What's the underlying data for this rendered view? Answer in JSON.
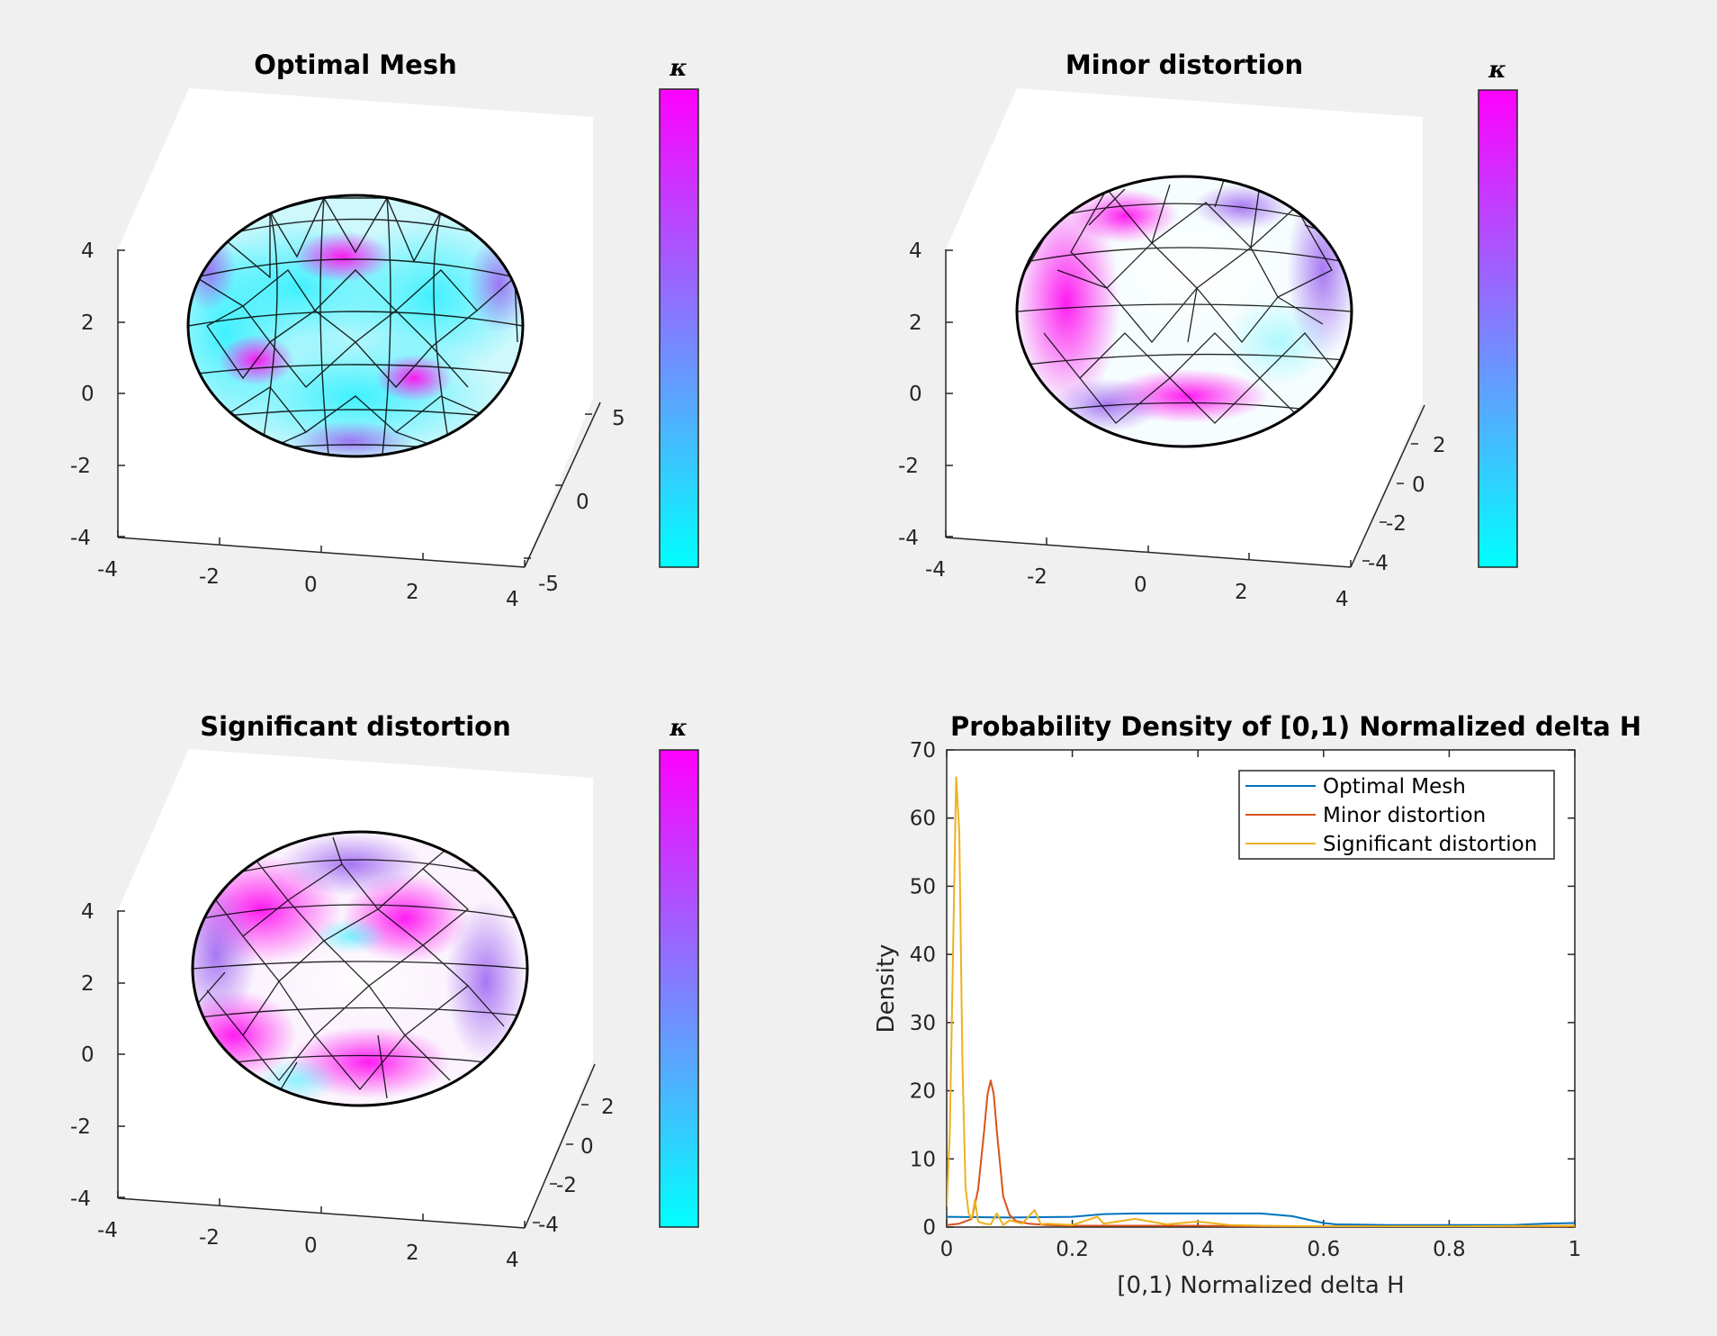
{
  "colorbar": {
    "label": "κ",
    "colors": [
      "#00ffff",
      "#ff00ff"
    ]
  },
  "mesh_panels": [
    {
      "title": "Optimal Mesh",
      "x_ticks": [
        "-4",
        "-2",
        "0",
        "2",
        "4"
      ],
      "z_ticks": [
        "4",
        "2",
        "0",
        "-2",
        "-4"
      ],
      "y_ticks": [
        "5",
        "0",
        "-5"
      ]
    },
    {
      "title": "Minor distortion",
      "x_ticks": [
        "-4",
        "-2",
        "0",
        "2",
        "4"
      ],
      "z_ticks": [
        "4",
        "2",
        "0",
        "-2",
        "-4"
      ],
      "y_ticks": [
        "2",
        "0",
        "-2",
        "-4"
      ]
    },
    {
      "title": "Significant distortion",
      "x_ticks": [
        "-4",
        "-2",
        "0",
        "2",
        "4"
      ],
      "z_ticks": [
        "4",
        "2",
        "0",
        "-2",
        "-4"
      ],
      "y_ticks": [
        "2",
        "0",
        "-2",
        "-4"
      ]
    }
  ],
  "chart_data": {
    "type": "line",
    "title": "Probability Density of [0,1) Normalized delta H",
    "xlabel": "[0,1) Normalized delta H",
    "ylabel": "Density",
    "xlim": [
      0,
      1
    ],
    "ylim": [
      0,
      70
    ],
    "xticks": [
      "0",
      "0.2",
      "0.4",
      "0.6",
      "0.8",
      "1"
    ],
    "yticks": [
      "0",
      "10",
      "20",
      "30",
      "40",
      "50",
      "60",
      "70"
    ],
    "legend_position": "top-right",
    "series": [
      {
        "name": "Optimal Mesh",
        "color": "#0072bd",
        "x": [
          0,
          0.1,
          0.2,
          0.25,
          0.3,
          0.35,
          0.4,
          0.45,
          0.5,
          0.55,
          0.6,
          0.62,
          0.7,
          0.8,
          0.9,
          0.95,
          1.0
        ],
        "y": [
          1.5,
          1.4,
          1.5,
          1.9,
          2.0,
          2.0,
          2.0,
          2.0,
          2.0,
          1.6,
          0.6,
          0.4,
          0.3,
          0.3,
          0.3,
          0.5,
          0.6
        ]
      },
      {
        "name": "Minor distortion",
        "color": "#d95319",
        "x": [
          0,
          0.02,
          0.04,
          0.05,
          0.06,
          0.065,
          0.07,
          0.075,
          0.08,
          0.09,
          0.1,
          0.11,
          0.13,
          0.16,
          0.2,
          0.3,
          0.4,
          0.5,
          0.6,
          0.8,
          1.0
        ],
        "y": [
          0.3,
          0.5,
          1.2,
          5.5,
          14.5,
          19.5,
          21.5,
          19.5,
          14.0,
          4.5,
          1.8,
          0.9,
          0.5,
          0.3,
          0.2,
          0.2,
          0.2,
          0.1,
          0.1,
          0.1,
          0.1
        ]
      },
      {
        "name": "Significant distortion",
        "color": "#edb120",
        "x": [
          0,
          0.005,
          0.01,
          0.015,
          0.02,
          0.025,
          0.03,
          0.035,
          0.04,
          0.045,
          0.05,
          0.06,
          0.07,
          0.08,
          0.09,
          0.1,
          0.12,
          0.14,
          0.15,
          0.16,
          0.2,
          0.24,
          0.25,
          0.3,
          0.35,
          0.4,
          0.45,
          0.5,
          0.6,
          0.8,
          1.0
        ],
        "y": [
          3.0,
          14.0,
          40.0,
          66.0,
          58.0,
          24.0,
          6.0,
          2.0,
          1.2,
          4.0,
          0.8,
          0.5,
          0.4,
          2.0,
          0.3,
          1.0,
          0.5,
          2.5,
          0.4,
          0.5,
          0.3,
          1.5,
          0.5,
          1.2,
          0.4,
          0.8,
          0.3,
          0.2,
          0.1,
          0.1,
          0.2
        ]
      }
    ]
  }
}
